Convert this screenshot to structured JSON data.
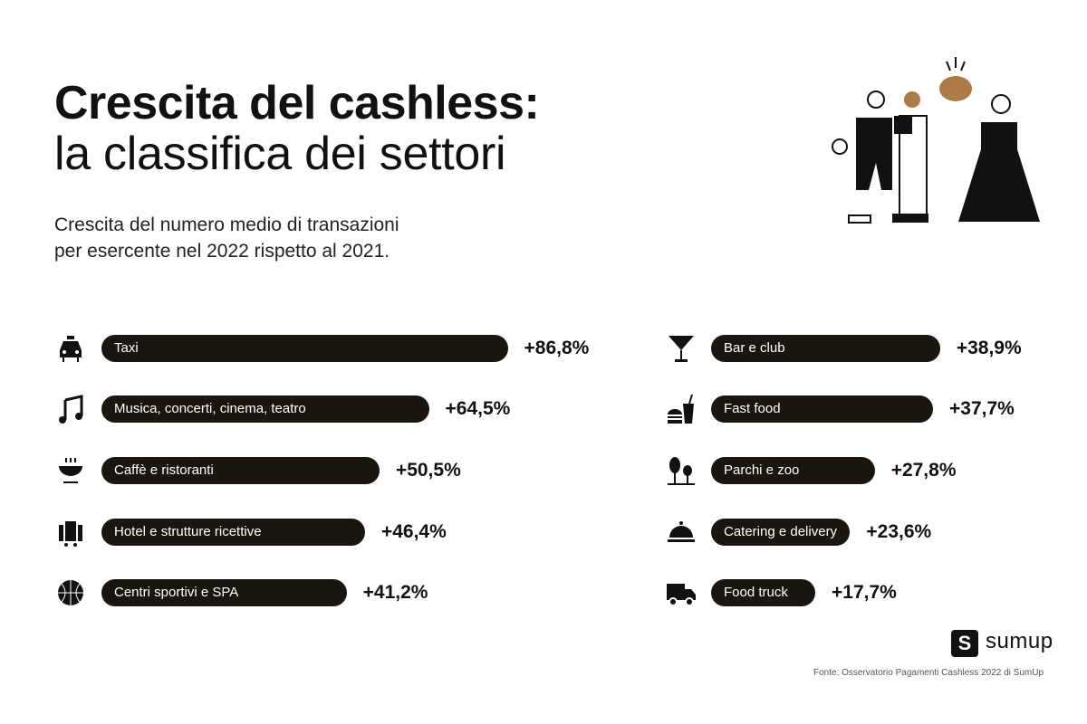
{
  "title_line1": "Crescita del cashless:",
  "title_line2": "la classifica dei settori",
  "subtitle_line1": "Crescita del numero medio di transazioni",
  "subtitle_line2": "per esercente nel 2022 rispetto al 2021.",
  "chart_data": {
    "type": "bar",
    "orientation": "horizontal",
    "columns": [
      {
        "categories": [
          "Taxi",
          "Musica, concerti, cinema, teatro",
          "Caffè e ristoranti",
          "Hotel e strutture ricettive",
          "Centri sportivi e SPA"
        ],
        "values": [
          86.8,
          64.5,
          50.5,
          46.4,
          41.2
        ],
        "labels": [
          "+86,8%",
          "+64,5%",
          "+50,5%",
          "+46,4%",
          "+41,2%"
        ],
        "icons": [
          "taxi-icon",
          "music-note-icon",
          "bowl-icon",
          "luggage-icon",
          "basketball-icon"
        ]
      },
      {
        "categories": [
          "Bar e club",
          "Fast food",
          "Parchi e zoo",
          "Catering e delivery",
          "Food truck"
        ],
        "values": [
          38.9,
          37.7,
          27.8,
          23.6,
          17.7
        ],
        "labels": [
          "+38,9%",
          "+37,7%",
          "+27,8%",
          "+23,6%",
          "+17,7%"
        ],
        "icons": [
          "cocktail-icon",
          "fast-food-icon",
          "trees-icon",
          "cloche-icon",
          "truck-icon"
        ]
      }
    ],
    "unit": "%",
    "bar_color": "#1a150f"
  },
  "brand": {
    "logo_text": "sumup",
    "logo_mark": "S"
  },
  "source": "Fonte: Osservatorio Pagamenti Cashless 2022 di SumUp"
}
